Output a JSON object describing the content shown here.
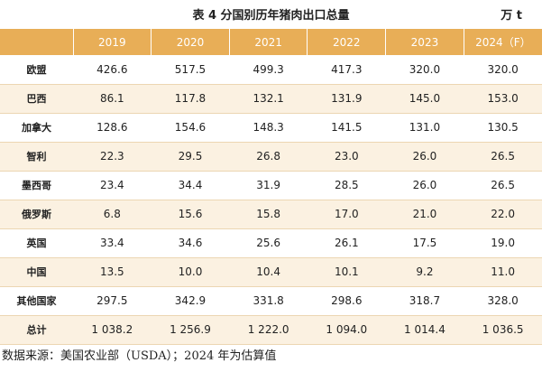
{
  "title": "表 4  分国别历年猪肉出口总量",
  "unit": "万 t",
  "header": [
    "",
    "2019",
    "2020",
    "2021",
    "2022",
    "2023",
    "2024（F）"
  ],
  "rows": [
    {
      "label": "欧盟",
      "values": [
        "426.6",
        "517.5",
        "499.3",
        "417.3",
        "320.0",
        "320.0"
      ]
    },
    {
      "label": "巴西",
      "values": [
        "86.1",
        "117.8",
        "132.1",
        "131.9",
        "145.0",
        "153.0"
      ]
    },
    {
      "label": "加拿大",
      "values": [
        "128.6",
        "154.6",
        "148.3",
        "141.5",
        "131.0",
        "130.5"
      ]
    },
    {
      "label": "智利",
      "values": [
        "22.3",
        "29.5",
        "26.8",
        "23.0",
        "26.0",
        "26.5"
      ]
    },
    {
      "label": "墨西哥",
      "values": [
        "23.4",
        "34.4",
        "31.9",
        "28.5",
        "26.0",
        "26.5"
      ]
    },
    {
      "label": "俄罗斯",
      "values": [
        "6.8",
        "15.6",
        "15.8",
        "17.0",
        "21.0",
        "22.0"
      ]
    },
    {
      "label": "英国",
      "values": [
        "33.4",
        "34.6",
        "25.6",
        "26.1",
        "17.5",
        "19.0"
      ]
    },
    {
      "label": "中国",
      "values": [
        "13.5",
        "10.0",
        "10.4",
        "10.1",
        "9.2",
        "11.0"
      ]
    },
    {
      "label": "其他国家",
      "values": [
        "297.5",
        "342.9",
        "331.8",
        "298.6",
        "318.7",
        "328.0"
      ]
    },
    {
      "label": "总计",
      "values": [
        "1 038.2",
        "1 256.9",
        "1 222.0",
        "1 094.0",
        "1 014.4",
        "1 036.5"
      ]
    }
  ],
  "source": "数据来源：美国农业部（USDA）；2024 年为估算值",
  "colors": {
    "header_bg": "#e8ae57",
    "stripe_bg": "#fbf1e1"
  }
}
